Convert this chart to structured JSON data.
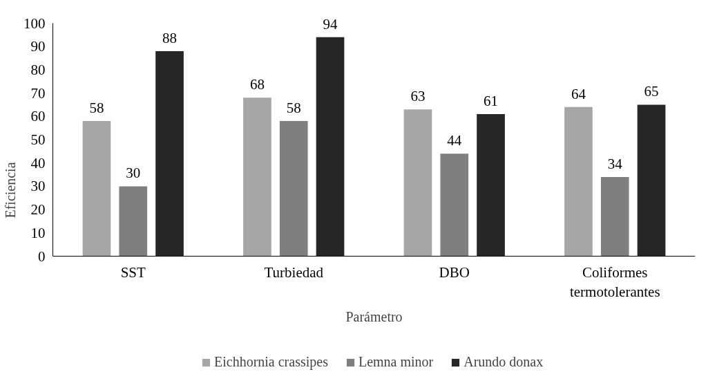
{
  "chart_data": {
    "type": "bar",
    "xlabel": "Parámetro",
    "ylabel": "Eficiencia",
    "categories": [
      "SST",
      "Turbiedad",
      "DBO",
      "Coliformes termotolerantes"
    ],
    "series": [
      {
        "name": "Eichhornia crassipes",
        "color": "#a6a6a6",
        "values": [
          58,
          68,
          63,
          64
        ]
      },
      {
        "name": "Lemna minor",
        "color": "#7f7f7f",
        "values": [
          30,
          58,
          44,
          34
        ]
      },
      {
        "name": "Arundo donax",
        "color": "#262626",
        "values": [
          88,
          94,
          61,
          65
        ]
      }
    ],
    "ylim": [
      0,
      100
    ],
    "yticks": [
      0,
      10,
      20,
      30,
      40,
      50,
      60,
      70,
      80,
      90,
      100
    ],
    "data_labels": true,
    "grid": false,
    "legend": "bottom"
  }
}
